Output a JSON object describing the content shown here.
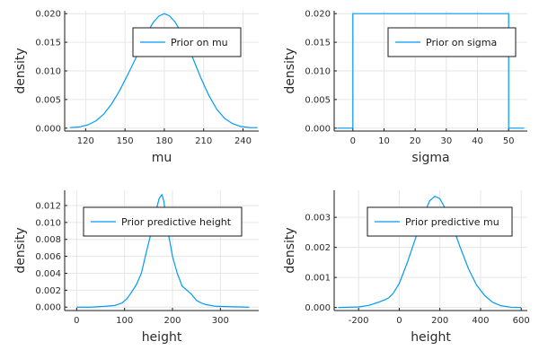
{
  "chart_data": [
    {
      "type": "line",
      "xlabel": "mu",
      "ylabel": "density",
      "xlim": [
        104,
        252
      ],
      "ylim": [
        -0.0005,
        0.0205
      ],
      "xticks": [
        120,
        150,
        180,
        210,
        240
      ],
      "yticks": [
        0.0,
        0.005,
        0.01,
        0.015,
        0.02
      ],
      "ytick_labels": [
        "0.000",
        "0.005",
        "0.010",
        "0.015",
        "0.020"
      ],
      "grid": true,
      "legend_position": "top-right",
      "series": [
        {
          "name": "Prior on mu",
          "color": "#009af9",
          "x": [
            108,
            115,
            122,
            128,
            134,
            140,
            146,
            152,
            158,
            163,
            168,
            172,
            176,
            180,
            184,
            188,
            192,
            197,
            202,
            208,
            214,
            220,
            226,
            232,
            238,
            245,
            251
          ],
          "y": [
            0.0001,
            0.0002,
            0.0006,
            0.0013,
            0.0025,
            0.0043,
            0.0066,
            0.0093,
            0.0121,
            0.0147,
            0.0171,
            0.0186,
            0.0196,
            0.02,
            0.0196,
            0.0186,
            0.0171,
            0.0147,
            0.0121,
            0.0087,
            0.0057,
            0.0033,
            0.0017,
            0.0008,
            0.0003,
            0.0001,
            0.0001
          ]
        }
      ]
    },
    {
      "type": "line",
      "xlabel": "sigma",
      "ylabel": "density",
      "xlim": [
        -6,
        56
      ],
      "ylim": [
        -0.0005,
        0.0205
      ],
      "xticks": [
        0,
        10,
        20,
        30,
        40,
        50
      ],
      "yticks": [
        0.0,
        0.005,
        0.01,
        0.015,
        0.02
      ],
      "ytick_labels": [
        "0.000",
        "0.005",
        "0.010",
        "0.015",
        "0.020"
      ],
      "grid": true,
      "legend_position": "top-right",
      "series": [
        {
          "name": "Prior on sigma",
          "color": "#009af9",
          "x": [
            -5,
            0,
            0,
            50,
            50,
            55
          ],
          "y": [
            0,
            0,
            0.02,
            0.02,
            0,
            0
          ]
        }
      ]
    },
    {
      "type": "line",
      "xlabel": "height",
      "ylabel": "density",
      "xlim": [
        -25,
        380
      ],
      "ylim": [
        -0.0004,
        0.0138
      ],
      "xticks": [
        0,
        100,
        200,
        300
      ],
      "yticks": [
        0.0,
        0.002,
        0.004,
        0.006,
        0.008,
        0.01,
        0.012
      ],
      "ytick_labels": [
        "0.000",
        "0.002",
        "0.004",
        "0.006",
        "0.008",
        "0.010",
        "0.012"
      ],
      "grid": true,
      "legend_position": "top-right",
      "series": [
        {
          "name": "Prior predictive height",
          "color": "#009af9",
          "x": [
            0,
            30,
            60,
            80,
            95,
            105,
            115,
            125,
            135,
            145,
            155,
            165,
            172,
            178,
            182,
            186,
            190,
            195,
            200,
            210,
            220,
            230,
            240,
            250,
            260,
            270,
            290,
            320,
            360
          ],
          "y": [
            0,
            0,
            0.0001,
            0.0002,
            0.0005,
            0.001,
            0.0018,
            0.0027,
            0.004,
            0.0064,
            0.0087,
            0.0112,
            0.0128,
            0.0133,
            0.0125,
            0.0108,
            0.009,
            0.0076,
            0.006,
            0.004,
            0.0025,
            0.002,
            0.0015,
            0.0008,
            0.0005,
            0.0003,
            0.0001,
            5e-05,
            0
          ]
        }
      ]
    },
    {
      "type": "line",
      "xlabel": "height",
      "ylabel": "density",
      "xlim": [
        -320,
        630
      ],
      "ylim": [
        -0.0001,
        0.0039
      ],
      "xticks": [
        -200,
        0,
        200,
        400,
        600
      ],
      "yticks": [
        0.0,
        0.001,
        0.002,
        0.003
      ],
      "ytick_labels": [
        "0.000",
        "0.001",
        "0.002",
        "0.003"
      ],
      "grid": true,
      "legend_position": "top-right",
      "series": [
        {
          "name": "Prior predictive mu",
          "color": "#009af9",
          "x": [
            -300,
            -200,
            -150,
            -100,
            -70,
            -50,
            -30,
            0,
            40,
            80,
            120,
            150,
            175,
            200,
            230,
            260,
            300,
            340,
            380,
            420,
            460,
            500,
            550,
            600
          ],
          "y": [
            0,
            2e-05,
            7e-05,
            0.00018,
            0.00026,
            0.00033,
            0.00047,
            0.0008,
            0.0015,
            0.0023,
            0.0031,
            0.00355,
            0.0037,
            0.00362,
            0.00325,
            0.00275,
            0.002,
            0.0013,
            0.00075,
            0.0004,
            0.00017,
            6e-05,
            1e-05,
            0
          ]
        }
      ]
    }
  ]
}
